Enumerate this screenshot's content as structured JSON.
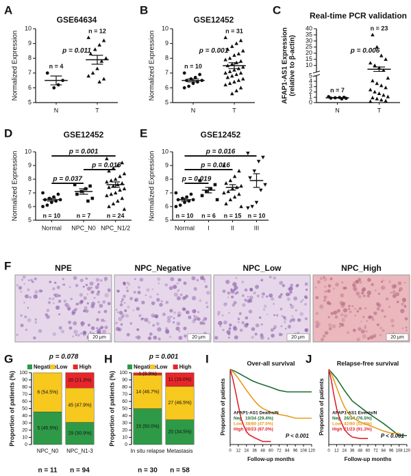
{
  "chart_data": [
    {
      "type": "dotplot",
      "panel": "A",
      "title": "GSE64634",
      "ylabel": "Normalized Expression",
      "categories": [
        "N",
        "T"
      ],
      "n_labels": [
        "n = 4",
        "n = 12"
      ],
      "n_label_position": "top",
      "markers": [
        "circle",
        "triangle"
      ],
      "points": [
        [
          7.0,
          6.5,
          6.2,
          6.0
        ],
        [
          9.4,
          9.2,
          8.9,
          8.6,
          8.3,
          8.0,
          7.8,
          7.3,
          7.0,
          6.8,
          6.6,
          6.4
        ]
      ],
      "means": [
        6.5,
        7.9
      ],
      "errors": [
        0.3,
        0.3
      ],
      "ylim": [
        5,
        10
      ],
      "yticks": [
        5,
        6,
        7,
        8,
        9,
        10
      ],
      "p_label": "p = 0.011"
    },
    {
      "type": "dotplot",
      "panel": "B",
      "title": "GSE12452",
      "ylabel": "Normalized Expression",
      "categories": [
        "N",
        "T"
      ],
      "n_labels": [
        "n = 10",
        "n = 31"
      ],
      "n_label_position": "top",
      "markers": [
        "circle",
        "triangle"
      ],
      "points": [
        [
          7.0,
          6.9,
          6.7,
          6.6,
          6.5,
          6.5,
          6.4,
          6.3,
          6.1,
          6.0
        ],
        [
          9.4,
          9.2,
          9.0,
          8.8,
          8.6,
          8.5,
          8.3,
          8.2,
          8.0,
          7.9,
          7.8,
          7.7,
          7.6,
          7.5,
          7.4,
          7.3,
          7.2,
          7.1,
          7.0,
          7.0,
          6.9,
          6.8,
          6.7,
          6.6,
          6.5,
          6.4,
          6.3,
          6.2,
          6.0,
          5.8,
          5.6
        ]
      ],
      "means": [
        6.5,
        7.5
      ],
      "errors": [
        0.1,
        0.2
      ],
      "ylim": [
        5,
        10
      ],
      "yticks": [
        5,
        6,
        7,
        8,
        9,
        10
      ],
      "p_label": "p = 0.001"
    },
    {
      "type": "dotplot",
      "panel": "C",
      "title": "Real-time PCR validation",
      "ylabel": "AFAP1-AS1 Expression",
      "ylabel2": "(relative to β-actin)",
      "categories": [
        "N",
        "T"
      ],
      "n_labels": [
        "n = 7",
        "n = 23"
      ],
      "n_label_position": "top",
      "markers": [
        "circle",
        "triangle"
      ],
      "points": [
        [
          1.1,
          1.0,
          0.95,
          0.9,
          0.85,
          0.8,
          0.7
        ],
        [
          0.2,
          0.3,
          0.5,
          0.7,
          0.9,
          1.1,
          1.4,
          1.7,
          2.0,
          2.4,
          2.8,
          3.2,
          3.6,
          4.1,
          4.6,
          6,
          8,
          10,
          12,
          15,
          18,
          25,
          35
        ]
      ],
      "means": [
        0.9,
        6.9
      ],
      "errors": [
        0.05,
        1.8
      ],
      "ylim": [
        0,
        40
      ],
      "y_break": 5,
      "yticks": [
        0,
        1,
        2,
        3,
        4,
        5,
        10,
        15,
        20,
        25,
        30,
        35,
        40
      ],
      "p_label": "p = 0.006"
    },
    {
      "type": "dotplot",
      "panel": "D",
      "title": "GSE12452",
      "ylabel": "Normalized Expression",
      "categories": [
        "Normal",
        "NPC_N0",
        "NPC_N1/2"
      ],
      "n_labels": [
        "n = 10",
        "n = 7",
        "n = 24"
      ],
      "n_label_position": "bottom",
      "markers": [
        "circle",
        "square",
        "triangle"
      ],
      "points": [
        [
          7.0,
          6.9,
          6.7,
          6.6,
          6.5,
          6.5,
          6.4,
          6.3,
          6.1,
          6.0
        ],
        [
          7.6,
          7.5,
          7.3,
          7.1,
          6.9,
          6.6,
          6.4
        ],
        [
          9.5,
          9.2,
          9.0,
          8.8,
          8.6,
          8.4,
          8.2,
          8.0,
          7.9,
          7.8,
          7.7,
          7.6,
          7.5,
          7.4,
          7.3,
          7.2,
          7.0,
          6.9,
          6.8,
          6.6,
          6.4,
          6.2,
          6.0,
          5.8
        ]
      ],
      "means": [
        6.5,
        7.1,
        7.6
      ],
      "errors": [
        0.1,
        0.2,
        0.2
      ],
      "ylim": [
        5,
        10
      ],
      "yticks": [
        5,
        6,
        7,
        8,
        9,
        10
      ],
      "comparisons": [
        {
          "groups": [
            "Normal",
            "NPC_N1/2"
          ],
          "label": "p = 0.001"
        },
        {
          "groups": [
            "NPC_N0",
            "NPC_N1/2"
          ],
          "label": "p = 0.015"
        },
        {
          "groups": [
            "Normal",
            "NPC_N0"
          ],
          "label": "p = 0.037"
        }
      ]
    },
    {
      "type": "dotplot",
      "panel": "E",
      "title": "GSE12452",
      "ylabel": "Normalized Expression",
      "categories": [
        "Normal",
        "I",
        "II",
        "III"
      ],
      "n_labels": [
        "n = 10",
        "n = 6",
        "n = 15",
        "n = 10"
      ],
      "n_label_position": "bottom",
      "markers": [
        "circle",
        "square",
        "triangle",
        "triangle-down"
      ],
      "points": [
        [
          7.0,
          6.9,
          6.7,
          6.6,
          6.5,
          6.5,
          6.4,
          6.3,
          6.1,
          6.0
        ],
        [
          7.9,
          7.6,
          7.3,
          7.1,
          6.8,
          6.5
        ],
        [
          9.0,
          8.6,
          8.2,
          7.9,
          7.7,
          7.5,
          7.4,
          7.3,
          7.1,
          7.0,
          6.9,
          6.7,
          6.5,
          6.2,
          6.0
        ],
        [
          9.9,
          9.6,
          9.3,
          8.6,
          8.1,
          7.6,
          7.2,
          6.3,
          6.0,
          5.9
        ]
      ],
      "means": [
        6.5,
        7.2,
        7.4,
        7.9
      ],
      "errors": [
        0.1,
        0.2,
        0.2,
        0.5
      ],
      "ylim": [
        5,
        10
      ],
      "yticks": [
        5,
        6,
        7,
        8,
        9,
        10
      ],
      "comparisons": [
        {
          "groups": [
            "Normal",
            "III"
          ],
          "label": "p = 0.016"
        },
        {
          "groups": [
            "Normal",
            "II"
          ],
          "label": "p = 0.016"
        },
        {
          "groups": [
            "Normal",
            "I"
          ],
          "label": "p = 0.019"
        }
      ]
    },
    {
      "type": "images",
      "panel": "F",
      "titles": [
        "NPE",
        "NPC_Negative",
        "NPC_Low",
        "NPC_High"
      ],
      "scale_bar": "20 μm"
    },
    {
      "type": "stacked_bar",
      "panel": "G",
      "p_label": "p = 0.078",
      "ylabel": "Proportion of patients (%)",
      "categories": [
        "NPC_N0",
        "NPC_N1-3"
      ],
      "n_labels": [
        "n = 11",
        "n = 94"
      ],
      "series": [
        {
          "name": "Negative",
          "color": "#2e9a48",
          "values": [
            45.5,
            30.9
          ],
          "value_labels": [
            "5 (45.5%)",
            "29 (30.9%)"
          ]
        },
        {
          "name": "Low",
          "color": "#f7c81e",
          "values": [
            54.5,
            47.9
          ],
          "value_labels": [
            "6 (54.5%)",
            "45 (47.9%)"
          ]
        },
        {
          "name": "High",
          "color": "#e8262a",
          "values": [
            0,
            21.3
          ],
          "value_labels": [
            null,
            "20 (21.3%)"
          ]
        }
      ],
      "ylim": [
        0,
        100
      ],
      "yticks": [
        0,
        10,
        20,
        30,
        40,
        50,
        60,
        70,
        80,
        90,
        100
      ]
    },
    {
      "type": "stacked_bar",
      "panel": "H",
      "p_label": "p = 0.001",
      "ylabel": "Proportion of patients (%)",
      "categories": [
        "In situ relapse",
        "Metastasis"
      ],
      "n_labels": [
        "n = 30",
        "n = 58"
      ],
      "series": [
        {
          "name": "Negative",
          "color": "#2e9a48",
          "values": [
            50.0,
            34.5
          ],
          "value_labels": [
            "15 (50.0%)",
            "20 (34.5%)"
          ]
        },
        {
          "name": "Low",
          "color": "#f7c81e",
          "values": [
            46.7,
            46.5
          ],
          "value_labels": [
            "14 (46.7%)",
            "27 (46.5%)"
          ]
        },
        {
          "name": "High",
          "color": "#e8262a",
          "values": [
            3.3,
            19.0
          ],
          "value_labels": [
            "1 (3.3%)",
            "11 (19.0%)"
          ]
        }
      ],
      "ylim": [
        0,
        100
      ],
      "yticks": [
        0,
        10,
        20,
        30,
        40,
        50,
        60,
        70,
        80,
        90,
        100
      ]
    },
    {
      "type": "km",
      "panel": "I",
      "title": "Over-all survival",
      "xlabel": "Follow-up months",
      "ylabel": "Proportion of patients",
      "xlim": [
        0,
        120
      ],
      "xticks": [
        0,
        12,
        24,
        36,
        48,
        60,
        72,
        84,
        96,
        108,
        120
      ],
      "ylim": [
        0,
        1
      ],
      "legend_title": "AFAP1-AS1 Deaths/N",
      "p_label": "P < 0.001",
      "series": [
        {
          "name": "Neg",
          "color": "#1a6b30",
          "stat": "10/34 (29.4%)",
          "x": [
            0,
            8,
            14,
            20,
            26,
            32,
            40,
            50,
            60,
            72,
            84,
            96,
            108,
            120
          ],
          "values": [
            1,
            0.97,
            0.94,
            0.91,
            0.88,
            0.85,
            0.82,
            0.79,
            0.76,
            0.72,
            0.7,
            0.7,
            0.7,
            0.7
          ]
        },
        {
          "name": "Low",
          "color": "#e89a1c",
          "stat": "38/80 (47.5%)",
          "x": [
            0,
            6,
            12,
            18,
            24,
            30,
            36,
            42,
            48,
            60,
            72,
            84,
            96,
            108,
            120
          ],
          "values": [
            1,
            0.95,
            0.88,
            0.8,
            0.72,
            0.65,
            0.58,
            0.52,
            0.48,
            0.43,
            0.4,
            0.38,
            0.35,
            0.35,
            0.35
          ]
        },
        {
          "name": "High",
          "color": "#e0202a",
          "stat": "20/23 (87.0%)",
          "x": [
            0,
            4,
            8,
            12,
            16,
            20,
            24,
            28,
            36,
            48,
            60
          ],
          "values": [
            1,
            0.87,
            0.7,
            0.52,
            0.35,
            0.25,
            0.17,
            0.13,
            0.09,
            0.04,
            0.04
          ]
        }
      ]
    },
    {
      "type": "km",
      "panel": "J",
      "title": "Relapse-free survival",
      "xlabel": "Follow-up months",
      "ylabel": "Proportion of patients",
      "xlim": [
        0,
        120
      ],
      "xticks": [
        0,
        12,
        24,
        36,
        48,
        60,
        72,
        84,
        96,
        108,
        120
      ],
      "ylim": [
        0,
        1
      ],
      "legend_title": "AFAP1-AS1 Events/N",
      "p_label": "P < 0.001",
      "series": [
        {
          "name": "Neg",
          "color": "#1a6b30",
          "stat": "26/34 (76.5%)",
          "x": [
            0,
            6,
            12,
            18,
            24,
            30,
            36,
            48,
            60,
            72,
            84,
            96,
            108,
            120
          ],
          "values": [
            1,
            0.94,
            0.88,
            0.8,
            0.72,
            0.65,
            0.58,
            0.5,
            0.42,
            0.35,
            0.28,
            0.2,
            0.12,
            0.12
          ]
        },
        {
          "name": "Low",
          "color": "#e89a1c",
          "stat": "42/80 (52.5%)",
          "x": [
            0,
            6,
            12,
            18,
            24,
            30,
            36,
            48,
            60,
            72,
            84,
            96,
            108
          ],
          "values": [
            1,
            0.9,
            0.76,
            0.62,
            0.5,
            0.42,
            0.36,
            0.3,
            0.26,
            0.22,
            0.18,
            0.15,
            0.15
          ]
        },
        {
          "name": "High",
          "color": "#e0202a",
          "stat": "21/23 (91.3%)",
          "x": [
            0,
            4,
            8,
            12,
            16,
            20,
            24,
            30,
            36,
            48,
            60
          ],
          "values": [
            1,
            0.85,
            0.65,
            0.48,
            0.36,
            0.28,
            0.2,
            0.14,
            0.1,
            0.08,
            0.08
          ]
        }
      ]
    }
  ]
}
